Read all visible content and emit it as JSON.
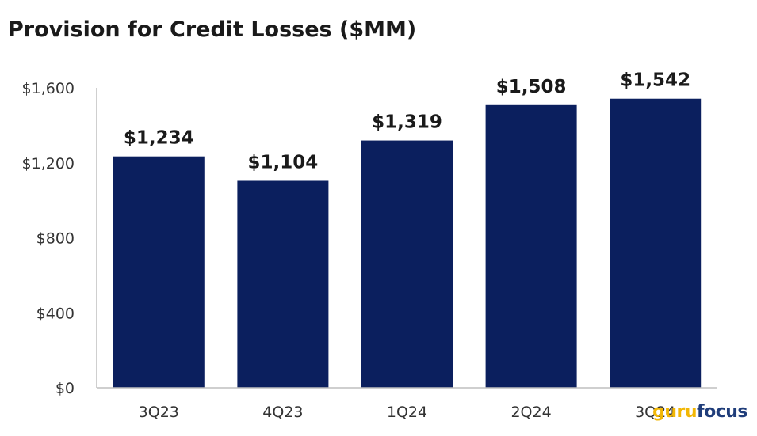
{
  "chart_data": {
    "type": "bar",
    "title": "Provision for Credit Losses ($MM)",
    "categories": [
      "3Q23",
      "4Q23",
      "1Q24",
      "2Q24",
      "3Q24"
    ],
    "values": [
      1234,
      1104,
      1319,
      1508,
      1542
    ],
    "data_labels": [
      "$1,234",
      "$1,104",
      "$1,319",
      "$1,508",
      "$1,542"
    ],
    "yticks": [
      0,
      400,
      800,
      1200,
      1600
    ],
    "ytick_labels": [
      "$0",
      "$400",
      "$800",
      "$1,200",
      "$1,600"
    ],
    "ylim": [
      0,
      1600
    ],
    "xlabel": "",
    "ylabel": "",
    "grid": false,
    "bar_color": "#0b1f5e"
  },
  "watermark": {
    "part1": "guru",
    "part2": "focus"
  }
}
